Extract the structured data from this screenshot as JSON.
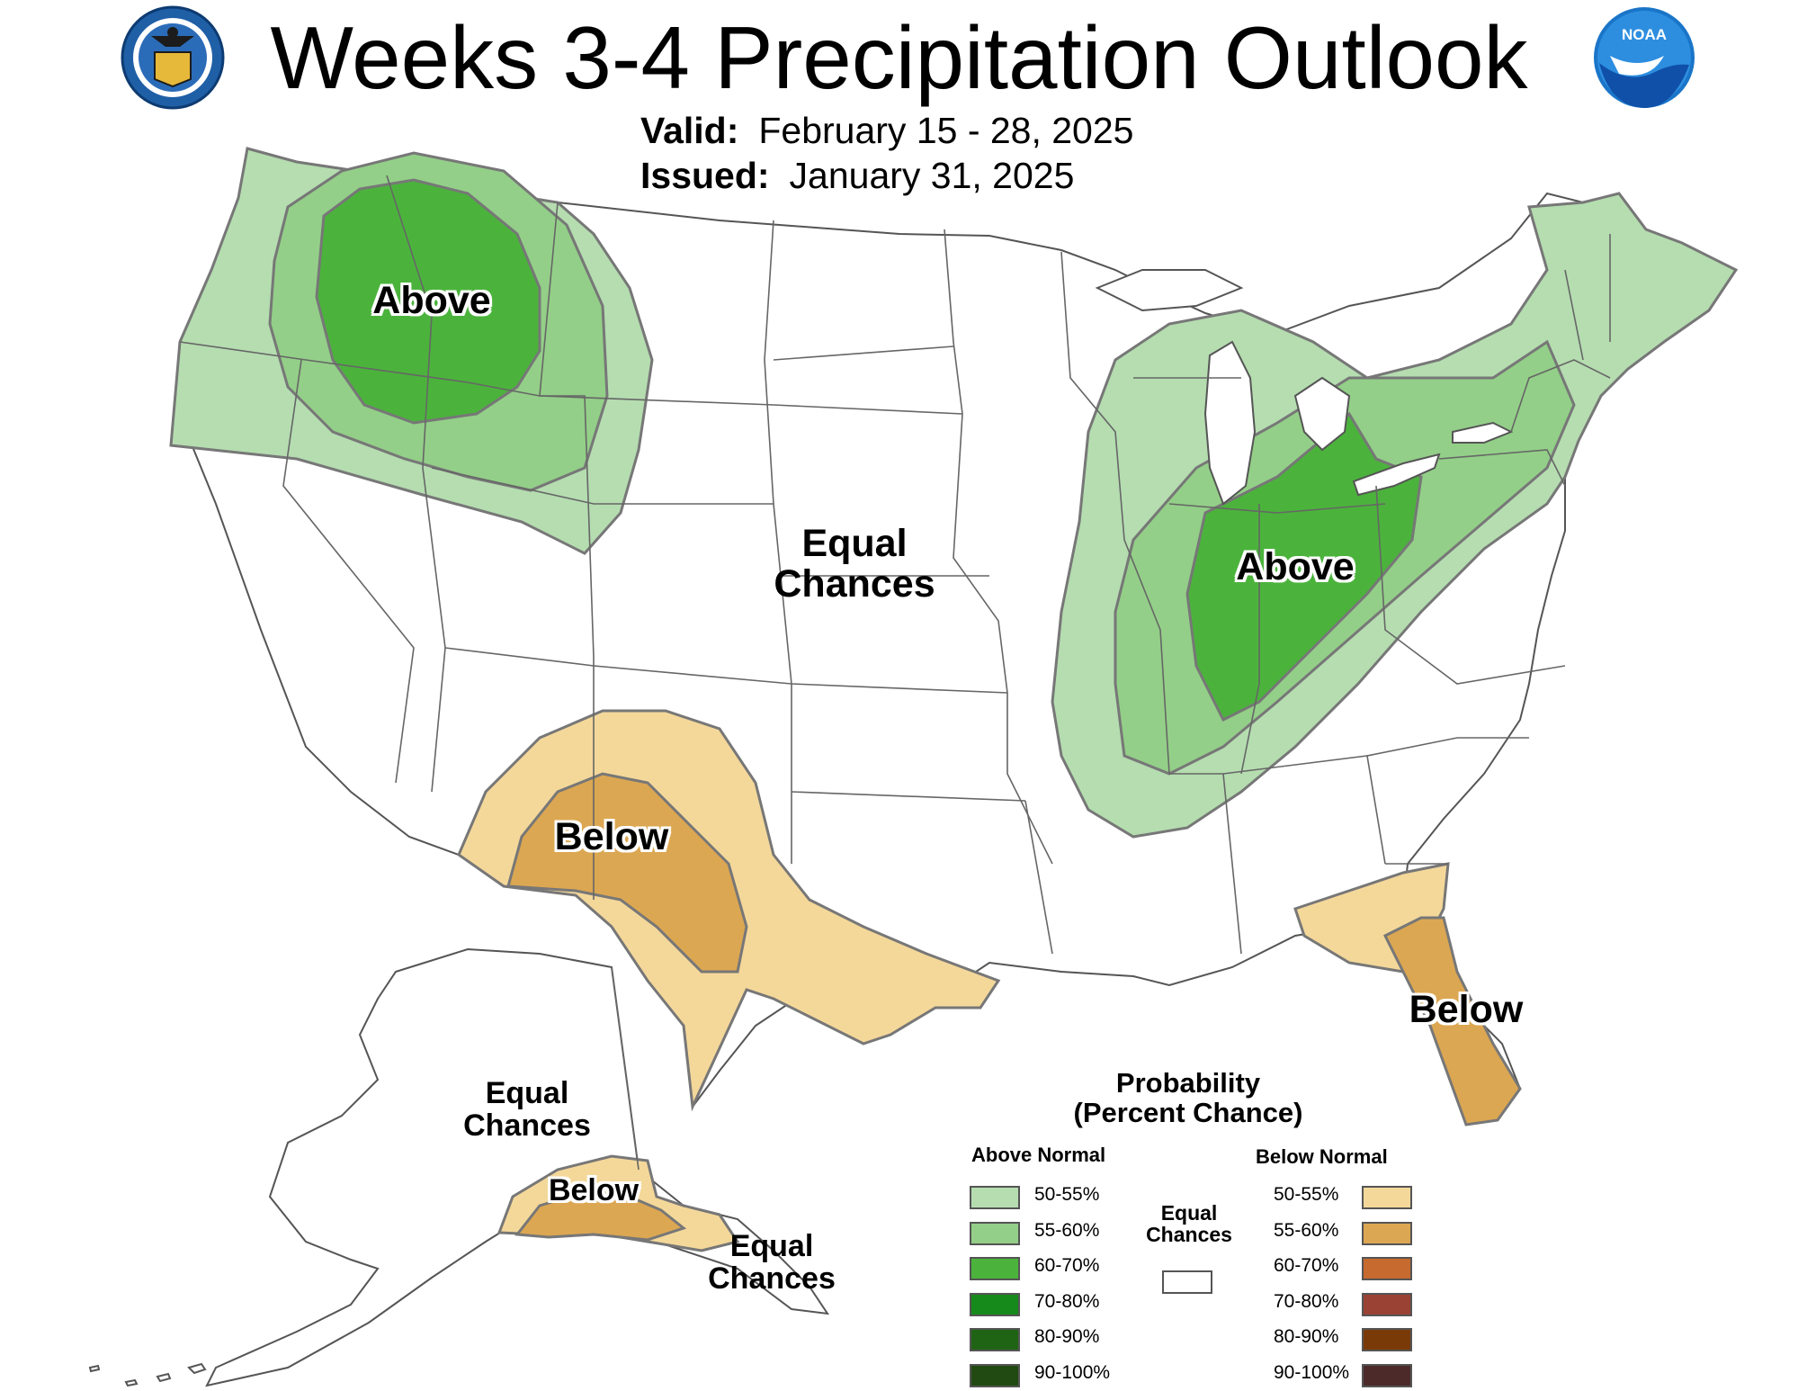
{
  "header": {
    "title": "Weeks 3-4 Precipitation Outlook",
    "valid_label": "Valid:",
    "valid_value": "February 15 - 28, 2025",
    "issued_label": "Issued:",
    "issued_value": "January 31, 2025",
    "logo_left": "commerce-seal-icon",
    "logo_right": "noaa-logo-icon",
    "noaa_text": "NOAA"
  },
  "regions": {
    "nw_above": "Above",
    "east_above": "Above",
    "sw_below": "Below",
    "fl_below": "Below",
    "center_equal_1": "Equal",
    "center_equal_2": "Chances",
    "ak_equal_1": "Equal",
    "ak_equal_2": "Chances",
    "ak_below": "Below",
    "ak_se_equal_1": "Equal",
    "ak_se_equal_2": "Chances"
  },
  "legend": {
    "title_1": "Probability",
    "title_2": "(Percent Chance)",
    "above_header": "Above Normal",
    "below_header": "Below Normal",
    "equal_1": "Equal",
    "equal_2": "Chances",
    "equal_color": "#ffffff",
    "above": [
      {
        "label": "50-55%",
        "color": "#b5ddb0"
      },
      {
        "label": "55-60%",
        "color": "#93cf88"
      },
      {
        "label": "60-70%",
        "color": "#4bb33c"
      },
      {
        "label": "70-80%",
        "color": "#168a1b"
      },
      {
        "label": "80-90%",
        "color": "#1f6314"
      },
      {
        "label": "90-100%",
        "color": "#214a12"
      }
    ],
    "below": [
      {
        "label": "50-55%",
        "color": "#f4d89a"
      },
      {
        "label": "55-60%",
        "color": "#dca752"
      },
      {
        "label": "60-70%",
        "color": "#c66a2f"
      },
      {
        "label": "70-80%",
        "color": "#9a4233"
      },
      {
        "label": "80-90%",
        "color": "#7a3a08"
      },
      {
        "label": "90-100%",
        "color": "#4c2a2a"
      }
    ]
  }
}
